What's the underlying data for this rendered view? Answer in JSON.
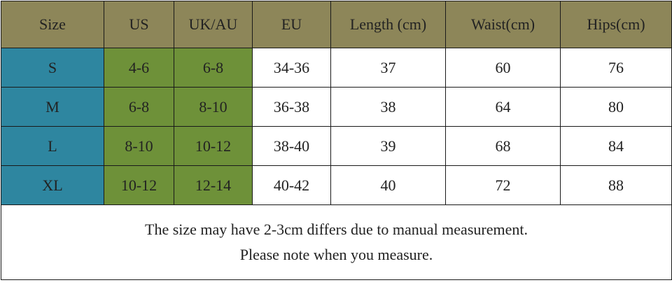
{
  "table": {
    "header": [
      "Size",
      "US",
      "UK/AU",
      "EU",
      "Length (cm)",
      "Waist(cm)",
      "Hips(cm)"
    ],
    "rows": [
      [
        "S",
        "4-6",
        "6-8",
        "34-36",
        37,
        60,
        76
      ],
      [
        "M",
        "6-8",
        "8-10",
        "36-38",
        38,
        64,
        80
      ],
      [
        "L",
        "8-10",
        "10-12",
        "38-40",
        39,
        68,
        84
      ],
      [
        "XL",
        "10-12",
        "12-14",
        "40-42",
        40,
        72,
        88
      ]
    ]
  },
  "note": [
    "The size may have 2-3cm differs due to manual measurement.",
    "Please note when you measure."
  ]
}
